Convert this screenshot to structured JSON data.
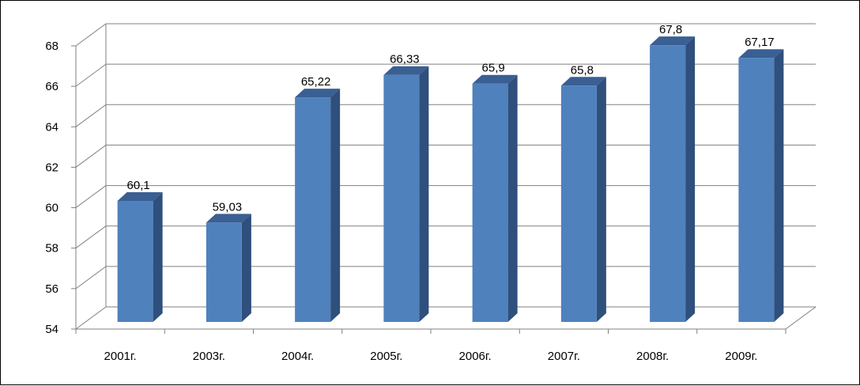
{
  "chart_data": {
    "type": "bar",
    "style": "3d-column",
    "title": "",
    "xlabel": "",
    "ylabel": "",
    "categories": [
      "2001г.",
      "2003г.",
      "2004г.",
      "2005г.",
      "2006г.",
      "2007г.",
      "2008г.",
      "2009г."
    ],
    "values": [
      60.1,
      59.03,
      65.22,
      66.33,
      65.9,
      65.8,
      67.8,
      67.17
    ],
    "data_labels": [
      "60,1",
      "59,03",
      "65,22",
      "66,33",
      "65,9",
      "65,8",
      "67,8",
      "67,17"
    ],
    "ylim": [
      54,
      68
    ],
    "yticks": [
      54,
      56,
      58,
      60,
      62,
      64,
      66,
      68
    ],
    "grid": true,
    "legend": "none",
    "colors": {
      "bar_front": "#4F81BD",
      "bar_side": "#2F4F7C",
      "bar_top": "#3A5F93",
      "grid": "#808080",
      "wall_line": "#808080"
    }
  }
}
